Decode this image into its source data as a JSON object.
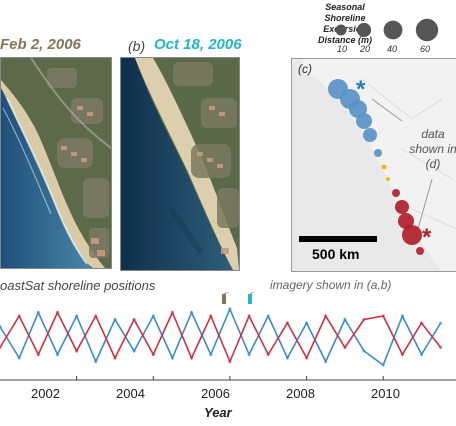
{
  "panel_a": {
    "title": "Feb 2, 2006"
  },
  "panel_b": {
    "label": "(b)",
    "title": "Oct 18, 2006"
  },
  "legend": {
    "title_lines": [
      "Seasonal",
      "Shoreline",
      "Excursion",
      "Distance (m)"
    ],
    "sizes": [
      {
        "label": "10",
        "value": 10
      },
      {
        "label": "20",
        "value": 20
      },
      {
        "label": "40",
        "value": 40
      },
      {
        "label": "60",
        "value": 60
      }
    ]
  },
  "map": {
    "label": "(c)",
    "note_lines": [
      "data",
      "shown in",
      "(d)"
    ],
    "scale_label": "500 km",
    "colors": {
      "positive": "#5b93c8",
      "negative": "#b0202a",
      "small": "#f2b400"
    }
  },
  "timeseries": {
    "title": "oastSat shoreline positions",
    "imagery_note": "imagery shown in (a,b)",
    "xlabel": "Year",
    "tick_labels": [
      "2002",
      "2004",
      "2006",
      "2008",
      "2010"
    ],
    "colors": {
      "series_a": "#3a8ad0",
      "series_b": "#d03040",
      "marker_a": "#8a7258",
      "marker_b": "#22b6c8"
    }
  },
  "chart_data": {
    "type": "line",
    "xlabel": "Year",
    "ylabel": "",
    "xlim": [
      2000.0,
      2011.9
    ],
    "ylim": [
      -1,
      1
    ],
    "x": [
      2000.0,
      2000.5,
      2001.0,
      2001.5,
      2002.0,
      2002.5,
      2003.0,
      2003.5,
      2004.0,
      2004.5,
      2005.0,
      2005.5,
      2006.0,
      2006.5,
      2007.0,
      2007.5,
      2008.0,
      2008.5,
      2009.0,
      2009.5,
      2010.0,
      2010.5,
      2011.0,
      2011.5
    ],
    "series": [
      {
        "values": [
          0.3,
          -0.6,
          0.7,
          -0.5,
          0.6,
          -0.7,
          0.5,
          -0.4,
          0.6,
          -0.6,
          0.7,
          -0.5,
          0.8,
          -0.5,
          0.6,
          -0.6,
          0.4,
          -0.7,
          0.5,
          -0.4,
          -0.8,
          0.6,
          -0.5,
          0.4
        ]
      },
      {
        "values": [
          -0.3,
          0.6,
          -0.5,
          0.7,
          -0.4,
          0.6,
          -0.6,
          0.5,
          -0.5,
          0.7,
          -0.6,
          0.6,
          -0.7,
          0.6,
          -0.5,
          0.4,
          -0.6,
          0.6,
          -0.3,
          0.5,
          0.6,
          -0.5,
          0.4,
          -0.3
        ]
      }
    ]
  }
}
